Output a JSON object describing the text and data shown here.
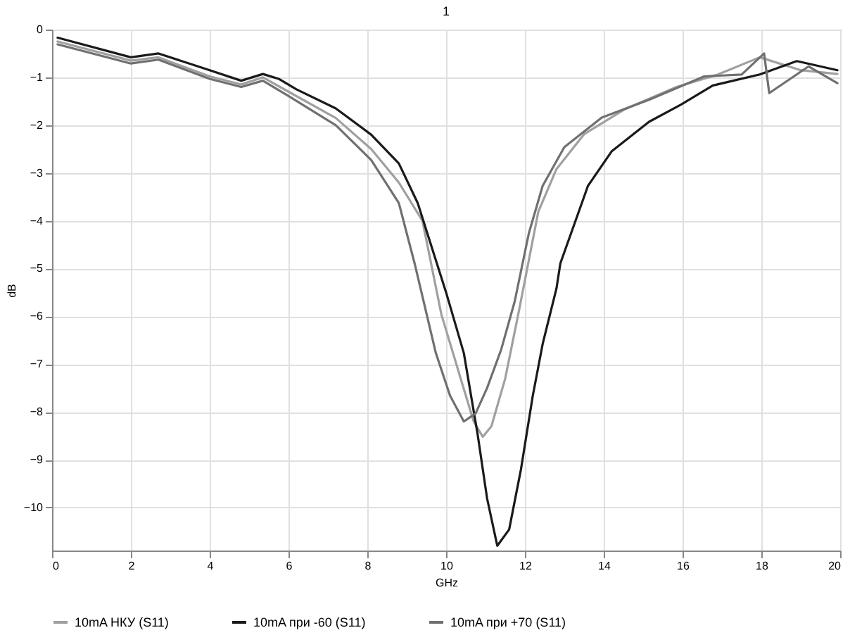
{
  "chart_data": {
    "type": "line",
    "title": "1",
    "xlabel": "GHz",
    "ylabel": "dB",
    "xlim": [
      0,
      20
    ],
    "xticks": [
      0,
      2,
      4,
      6,
      8,
      10,
      12,
      14,
      16,
      18,
      20
    ],
    "ylim": [
      -10.9,
      0
    ],
    "yticks": [
      0,
      -1,
      -2,
      -3,
      -4,
      -5,
      -6,
      -7,
      -8,
      -9,
      -10
    ],
    "grid": true,
    "legend": "bottom",
    "line_style": "solid",
    "series": [
      {
        "name": "10mA НКУ (S11)",
        "color": "#a0a0a0",
        "x": [
          0.14,
          2,
          2.7,
          4,
          4.8,
          5.35,
          6,
          7.2,
          8.1,
          8.8,
          9.4,
          9.88,
          10.34,
          10.7,
          10.93,
          11.15,
          11.5,
          11.85,
          12.34,
          12.8,
          13.5,
          14.55,
          15.85,
          16.9,
          17.96,
          19,
          19.93
        ],
        "values": [
          -0.25,
          -0.65,
          -0.58,
          -0.98,
          -1.15,
          -1,
          -1.3,
          -1.85,
          -2.5,
          -3.2,
          -4,
          -5.96,
          -7.22,
          -8.2,
          -8.52,
          -8.3,
          -7.3,
          -5.88,
          -3.81,
          -2.92,
          -2.19,
          -1.66,
          -1.2,
          -0.94,
          -0.58,
          -0.85,
          -0.93
        ]
      },
      {
        "name": "10mA при -60 (S11)",
        "color": "#1a1a1a",
        "x": [
          0.14,
          2,
          2.7,
          4,
          4.8,
          5.35,
          5.75,
          6.2,
          7.2,
          8.1,
          8.8,
          9.28,
          10,
          10.45,
          10.8,
          11.04,
          11.28,
          11.3,
          11.6,
          11.9,
          12.2,
          12.45,
          12.8,
          12.9,
          13.6,
          14.2,
          15.15,
          15.96,
          16.77,
          17.96,
          18.9,
          19.93
        ],
        "values": [
          -0.17,
          -0.58,
          -0.5,
          -0.85,
          -1.07,
          -0.93,
          -1.03,
          -1.25,
          -1.65,
          -2.2,
          -2.8,
          -3.63,
          -5.5,
          -6.77,
          -8.47,
          -9.81,
          -10.73,
          -10.8,
          -10.46,
          -9.2,
          -7.66,
          -6.58,
          -5.42,
          -4.89,
          -3.27,
          -2.55,
          -1.93,
          -1.57,
          -1.17,
          -0.94,
          -0.66,
          -0.85
        ]
      },
      {
        "name": "10mA при +70 (S11)",
        "color": "#707070",
        "x": [
          0.14,
          2,
          2.7,
          4,
          4.8,
          5.35,
          6,
          7.2,
          8.1,
          8.8,
          9.2,
          9.74,
          10.1,
          10.45,
          10.75,
          11.04,
          11.4,
          11.74,
          12.1,
          12.45,
          13,
          13.95,
          15.15,
          16.55,
          17.5,
          18.07,
          18.2,
          19.2,
          19.93
        ],
        "values": [
          -0.31,
          -0.71,
          -0.63,
          -1.03,
          -1.2,
          -1.07,
          -1.39,
          -2,
          -2.73,
          -3.63,
          -4.89,
          -6.77,
          -7.66,
          -8.2,
          -8.03,
          -7.5,
          -6.69,
          -5.69,
          -4.26,
          -3.27,
          -2.46,
          -1.84,
          -1.47,
          -0.98,
          -0.94,
          -0.5,
          -1.33,
          -0.77,
          -1.12
        ]
      }
    ]
  }
}
